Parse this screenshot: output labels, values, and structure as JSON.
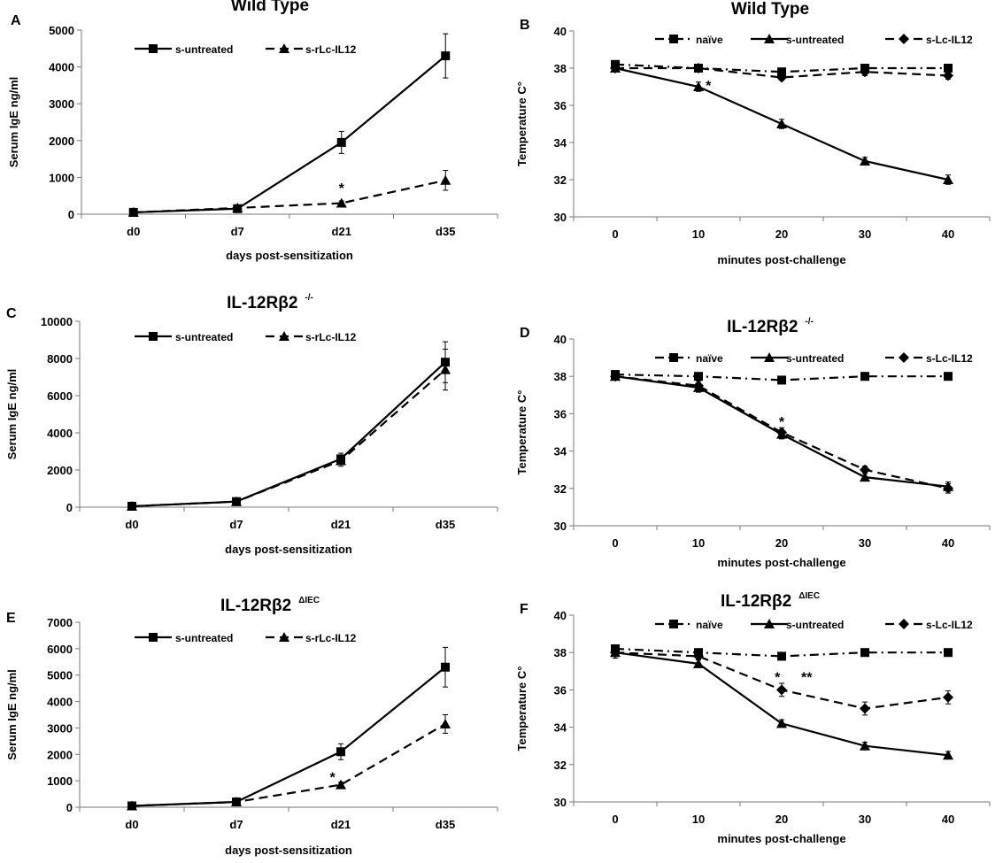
{
  "figure": {
    "panel_count": 6
  },
  "chart_data": [
    {
      "panel": "A",
      "type": "line",
      "title": "Wild Type",
      "title_sup": "",
      "xlabel": "days post-sensitization",
      "ylabel": "Serum IgE ng/ml",
      "categories": [
        "d0",
        "d7",
        "d21",
        "d35"
      ],
      "ylim": [
        0,
        5000
      ],
      "yticks": [
        0,
        1000,
        2000,
        3000,
        4000,
        5000
      ],
      "series": [
        {
          "name": "s-untreated",
          "marker": "square",
          "dash": "solid",
          "values": [
            50,
            150,
            1950,
            4300
          ],
          "errors": [
            0,
            0,
            300,
            600
          ]
        },
        {
          "name": "s-rLc-IL12",
          "marker": "triangle",
          "dash": "dashed",
          "values": [
            50,
            170,
            300,
            920
          ],
          "errors": [
            0,
            0,
            60,
            270
          ]
        }
      ],
      "annotations": [
        {
          "text": "*",
          "x": 2,
          "y": 720
        }
      ]
    },
    {
      "panel": "B",
      "type": "line",
      "title": "Wild Type",
      "title_sup": "",
      "xlabel": "minutes post-challenge",
      "ylabel": "Temperature C°",
      "categories": [
        "0",
        "10",
        "20",
        "30",
        "40"
      ],
      "ylim": [
        30,
        40
      ],
      "yticks": [
        30,
        32,
        34,
        36,
        38,
        40
      ],
      "series": [
        {
          "name": "naïve",
          "marker": "square",
          "dash": "dashdot",
          "values": [
            38.2,
            38.0,
            37.8,
            38.0,
            38.0
          ],
          "errors": [
            0.15,
            0.15,
            0.15,
            0.2,
            0.2
          ]
        },
        {
          "name": "s-untreated",
          "marker": "triangle",
          "dash": "solid",
          "values": [
            38.0,
            37.0,
            35.0,
            33.0,
            32.0
          ],
          "errors": [
            0.15,
            0.25,
            0.25,
            0.2,
            0.25
          ]
        },
        {
          "name": "s-Lc-IL12",
          "marker": "diamond",
          "dash": "dashed",
          "values": [
            38.0,
            38.0,
            37.5,
            37.8,
            37.6
          ],
          "errors": [
            0.15,
            0.15,
            0.15,
            0.2,
            0.2
          ]
        }
      ],
      "annotations": [
        {
          "text": "*",
          "x": 1.12,
          "y": 37.1
        }
      ]
    },
    {
      "panel": "C",
      "type": "line",
      "title": "IL-12Rβ2",
      "title_sup": "-/-",
      "xlabel": "days post-sensitization",
      "ylabel": "Serum IgE ng/ml",
      "categories": [
        "d0",
        "d7",
        "d21",
        "d35"
      ],
      "ylim": [
        0,
        10000
      ],
      "yticks": [
        0,
        2000,
        4000,
        6000,
        8000,
        10000
      ],
      "series": [
        {
          "name": "s-untreated",
          "marker": "square",
          "dash": "solid",
          "values": [
            50,
            300,
            2600,
            7800
          ],
          "errors": [
            0,
            0,
            300,
            1100
          ]
        },
        {
          "name": "s-rLc-IL12",
          "marker": "triangle",
          "dash": "dashed",
          "values": [
            50,
            300,
            2500,
            7400
          ],
          "errors": [
            0,
            0,
            300,
            1100
          ]
        }
      ],
      "annotations": []
    },
    {
      "panel": "D",
      "type": "line",
      "title": "IL-12Rβ2",
      "title_sup": "-/-",
      "xlabel": "minutes post-challenge",
      "ylabel": "Temperature C°",
      "categories": [
        "0",
        "10",
        "20",
        "30",
        "40"
      ],
      "ylim": [
        30,
        40
      ],
      "yticks": [
        30,
        32,
        34,
        36,
        38,
        40
      ],
      "series": [
        {
          "name": "naïve",
          "marker": "square",
          "dash": "dashdot",
          "values": [
            38.1,
            38.0,
            37.8,
            38.0,
            38.0
          ],
          "errors": [
            0.2,
            0.2,
            0.2,
            0.2,
            0.2
          ]
        },
        {
          "name": "s-untreated",
          "marker": "triangle",
          "dash": "solid",
          "values": [
            38.0,
            37.4,
            34.9,
            32.6,
            32.1
          ],
          "errors": [
            0.2,
            0.25,
            0.25,
            0.2,
            0.25
          ]
        },
        {
          "name": "s-Lc-IL12",
          "marker": "diamond",
          "dash": "dashed",
          "values": [
            38.0,
            37.5,
            35.0,
            33.0,
            32.0
          ],
          "errors": [
            0.2,
            0.25,
            0.25,
            0.2,
            0.25
          ]
        }
      ],
      "annotations": [
        {
          "text": "*",
          "x": 2,
          "y": 35.6
        }
      ]
    },
    {
      "panel": "E",
      "type": "line",
      "title": "IL-12Rβ2",
      "title_sup": "ΔIEC",
      "xlabel": "days post-sensitization",
      "ylabel": "Serum IgE ng/ml",
      "categories": [
        "d0",
        "d7",
        "d21",
        "d35"
      ],
      "ylim": [
        0,
        7000
      ],
      "yticks": [
        0,
        1000,
        2000,
        3000,
        4000,
        5000,
        6000,
        7000
      ],
      "series": [
        {
          "name": "s-untreated",
          "marker": "square",
          "dash": "solid",
          "values": [
            50,
            200,
            2100,
            5300
          ],
          "errors": [
            0,
            0,
            300,
            750
          ]
        },
        {
          "name": "s-rLc-IL12",
          "marker": "triangle",
          "dash": "dashed",
          "values": [
            50,
            200,
            850,
            3150
          ],
          "errors": [
            0,
            0,
            100,
            350
          ]
        }
      ],
      "annotations": [
        {
          "text": "*",
          "x": 1.92,
          "y": 1150
        }
      ]
    },
    {
      "panel": "F",
      "type": "line",
      "title": "IL-12Rβ2",
      "title_sup": "ΔIEC",
      "xlabel": "minutes post-challenge",
      "ylabel": "Temperature C°",
      "categories": [
        "0",
        "10",
        "20",
        "30",
        "40"
      ],
      "ylim": [
        30,
        40
      ],
      "yticks": [
        30,
        32,
        34,
        36,
        38,
        40
      ],
      "series": [
        {
          "name": "naïve",
          "marker": "square",
          "dash": "dashdot",
          "values": [
            38.2,
            38.0,
            37.8,
            38.0,
            38.0
          ],
          "errors": [
            0.15,
            0.2,
            0.15,
            0.2,
            0.2
          ]
        },
        {
          "name": "s-untreated",
          "marker": "triangle",
          "dash": "solid",
          "values": [
            38.0,
            37.4,
            34.2,
            33.0,
            32.5
          ],
          "errors": [
            0.3,
            0.2,
            0.2,
            0.2,
            0.2
          ]
        },
        {
          "name": "s-Lc-IL12",
          "marker": "diamond",
          "dash": "dashed",
          "values": [
            38.0,
            37.8,
            36.0,
            35.0,
            35.6
          ],
          "errors": [
            0.2,
            0.2,
            0.35,
            0.35,
            0.35
          ]
        }
      ],
      "annotations": [
        {
          "text": "*",
          "x": 1.95,
          "y": 36.7
        },
        {
          "text": "**",
          "x": 2.3,
          "y": 36.7
        }
      ]
    }
  ]
}
